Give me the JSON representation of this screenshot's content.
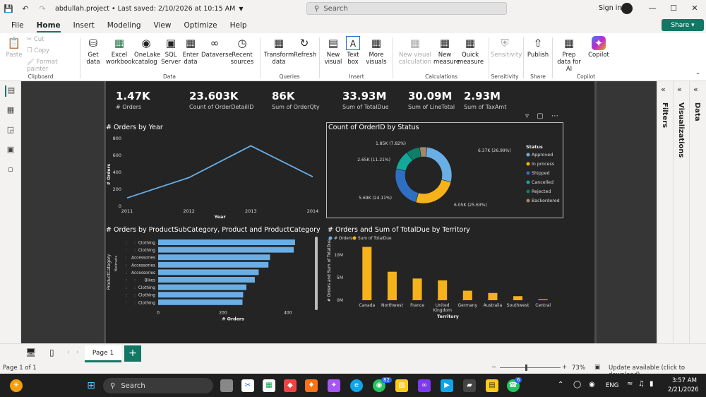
{
  "titlebar": {
    "title": "abdullah.project • Last saved: 2/10/2026 at 10:15 AM",
    "search_placeholder": "Search",
    "signin": "Sign in"
  },
  "menu": [
    "File",
    "Home",
    "Insert",
    "Modeling",
    "View",
    "Optimize",
    "Help"
  ],
  "share": "Share",
  "ribbon": {
    "clipboard": {
      "paste": "Paste",
      "cut": "Cut",
      "copy": "Copy",
      "format_painter": "Format painter",
      "group": "Clipboard"
    },
    "data": {
      "get_data": "Get data",
      "excel": "Excel workbook",
      "onelake": "OneLake catalog",
      "sql": "SQL Server",
      "enter": "Enter data",
      "dataverse": "Dataverse",
      "recent": "Recent sources",
      "group": "Data"
    },
    "queries": {
      "transform": "Transform data",
      "refresh": "Refresh",
      "group": "Queries"
    },
    "insert": {
      "new_visual": "New visual",
      "text_box": "Text box",
      "more_visuals": "More visuals",
      "group": "Insert"
    },
    "calculations": {
      "new_visual_calc": "New visual calculation",
      "new_measure": "New measure",
      "quick_measure": "Quick measure",
      "group": "Calculations"
    },
    "sensitivity": {
      "label": "Sensitivity",
      "group": "Sensitivity"
    },
    "share": {
      "publish": "Publish",
      "group": "Share"
    },
    "copilot": {
      "prep": "Prep data for AI",
      "copilot": "Copilot",
      "group": "Copilot"
    }
  },
  "kpis": [
    {
      "value": "1.47K",
      "label": "# Orders"
    },
    {
      "value": "23.603K",
      "label": "Count of OrderDetailID"
    },
    {
      "value": "86K",
      "label": "Sum of OrderQty"
    },
    {
      "value": "33.93M",
      "label": "Sum of TotalDue"
    },
    {
      "value": "30.09M",
      "label": "Sum of LineTotal"
    },
    {
      "value": "2.93M",
      "label": "Sum of TaxAmt"
    }
  ],
  "chart_data": [
    {
      "type": "line",
      "title": "# Orders by Year",
      "xlabel": "Year",
      "ylabel": "# Orders",
      "x": [
        2011,
        2012,
        2013,
        2014
      ],
      "values": [
        90,
        330,
        705,
        340
      ],
      "ylim": [
        0,
        800
      ],
      "yticks": [
        "0",
        "200",
        "400",
        "600",
        "800"
      ]
    },
    {
      "type": "pie",
      "title": "Count of OrderID by Status",
      "legend_title": "Status",
      "slices": [
        {
          "name": "Approved",
          "value": 6370,
          "label": "6.37K (26.99%)",
          "color": "#6aaee6"
        },
        {
          "name": "In process",
          "value": 6050,
          "label": "6.05K (25.63%)",
          "color": "#f5b21b"
        },
        {
          "name": "Shipped",
          "value": 5690,
          "label": "5.69K (24.11%)",
          "color": "#2e6fc2"
        },
        {
          "name": "Cancelled",
          "value": 2650,
          "label": "2.65K (11.21%)",
          "color": "#12a89a"
        },
        {
          "name": "Rejected",
          "value": 1850,
          "label": "1.85K (7.82%)",
          "color": "#0e7f6b"
        },
        {
          "name": "Backordered",
          "value": 980,
          "label": "",
          "color": "#a1886a"
        }
      ]
    },
    {
      "type": "bar",
      "title": "# Orders by ProductSubCategory, Product and ProductCategory",
      "xlabel": "# Orders",
      "ylabel": "ProductCategory",
      "ylabel2": "Helmets",
      "categories": [
        "Clothing",
        "Clothing",
        "Accessories",
        "Accessories",
        "Accessories",
        "Bikes",
        "Clothing",
        "Clothing",
        "Clothing"
      ],
      "values": [
        422,
        418,
        345,
        340,
        310,
        298,
        272,
        262,
        260
      ],
      "xticks": [
        "0",
        "200",
        "400"
      ],
      "xlim": [
        0,
        470
      ]
    },
    {
      "type": "bar",
      "title": "# Orders and Sum of TotalDue by Territory",
      "xlabel": "Territory",
      "ylabel": "# Orders and Sum of TotalDue",
      "legend": [
        "# Orders",
        "Sum of TotalDue"
      ],
      "categories": [
        "Canada",
        "Northwest",
        "France",
        "United Kingdom",
        "Germany",
        "Australia",
        "Southwest",
        "Central"
      ],
      "series": [
        {
          "name": "Sum of TotalDue",
          "values": [
            11.8,
            6.3,
            4.8,
            4.4,
            2.1,
            1.6,
            0.9,
            0.2
          ]
        }
      ],
      "yticks": [
        "0M",
        "5M",
        "10M"
      ],
      "ylim": [
        0,
        12.5
      ]
    }
  ],
  "pages": {
    "tab": "Page 1"
  },
  "panes": {
    "filters": "Filters",
    "visualizations": "Visualizations",
    "data": "Data"
  },
  "status": {
    "page": "Page 1 of 1",
    "zoom": "73%",
    "update": "Update available (click to download)"
  },
  "taskbar": {
    "search": "Search",
    "lang": "ENG",
    "time": "3:57 AM",
    "date": "2/21/2026",
    "badge1": "82",
    "badge2": "6"
  },
  "colors": {
    "accent": "#117865",
    "bar_blue": "#6aaee6",
    "bar_gold": "#f5b21b"
  }
}
